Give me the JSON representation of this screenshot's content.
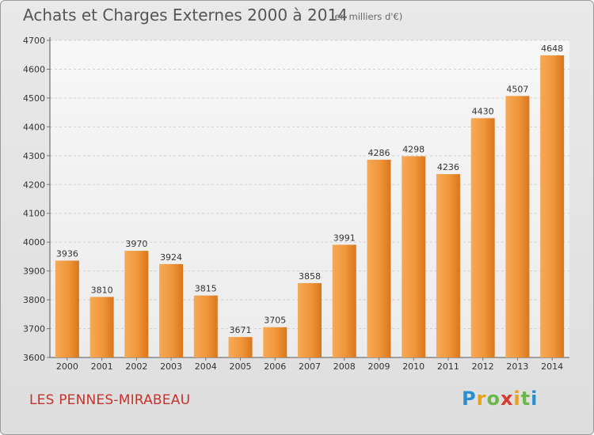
{
  "chart_data": {
    "type": "bar",
    "title": "Achats et Charges Externes 2000 à 2014",
    "unit_note": "(en milliers d'€)",
    "xlabel": "",
    "ylabel": "",
    "categories": [
      "2000",
      "2001",
      "2002",
      "2003",
      "2004",
      "2005",
      "2006",
      "2007",
      "2008",
      "2009",
      "2010",
      "2011",
      "2012",
      "2013",
      "2014"
    ],
    "values": [
      3936,
      3810,
      3970,
      3924,
      3815,
      3671,
      3705,
      3858,
      3991,
      4286,
      4298,
      4236,
      4430,
      4507,
      4648
    ],
    "ylim": [
      3600,
      4700
    ],
    "yticks": [
      3600,
      3700,
      3800,
      3900,
      4000,
      4100,
      4200,
      4300,
      4400,
      4500,
      4600,
      4700
    ],
    "grid": true,
    "bar_color": "#f0963a",
    "bar_color_dark": "#d9761c"
  },
  "footer": {
    "city": "LES PENNES-MIRABEAU",
    "logo_letters": [
      "P",
      "r",
      "o",
      "x",
      "i",
      "t",
      "i"
    ],
    "logo_colors": [
      "#2a8fd0",
      "#e8a21a",
      "#6ab84a",
      "#d73a2e",
      "#e8a21a",
      "#6ab84a",
      "#2a8fd0"
    ]
  }
}
